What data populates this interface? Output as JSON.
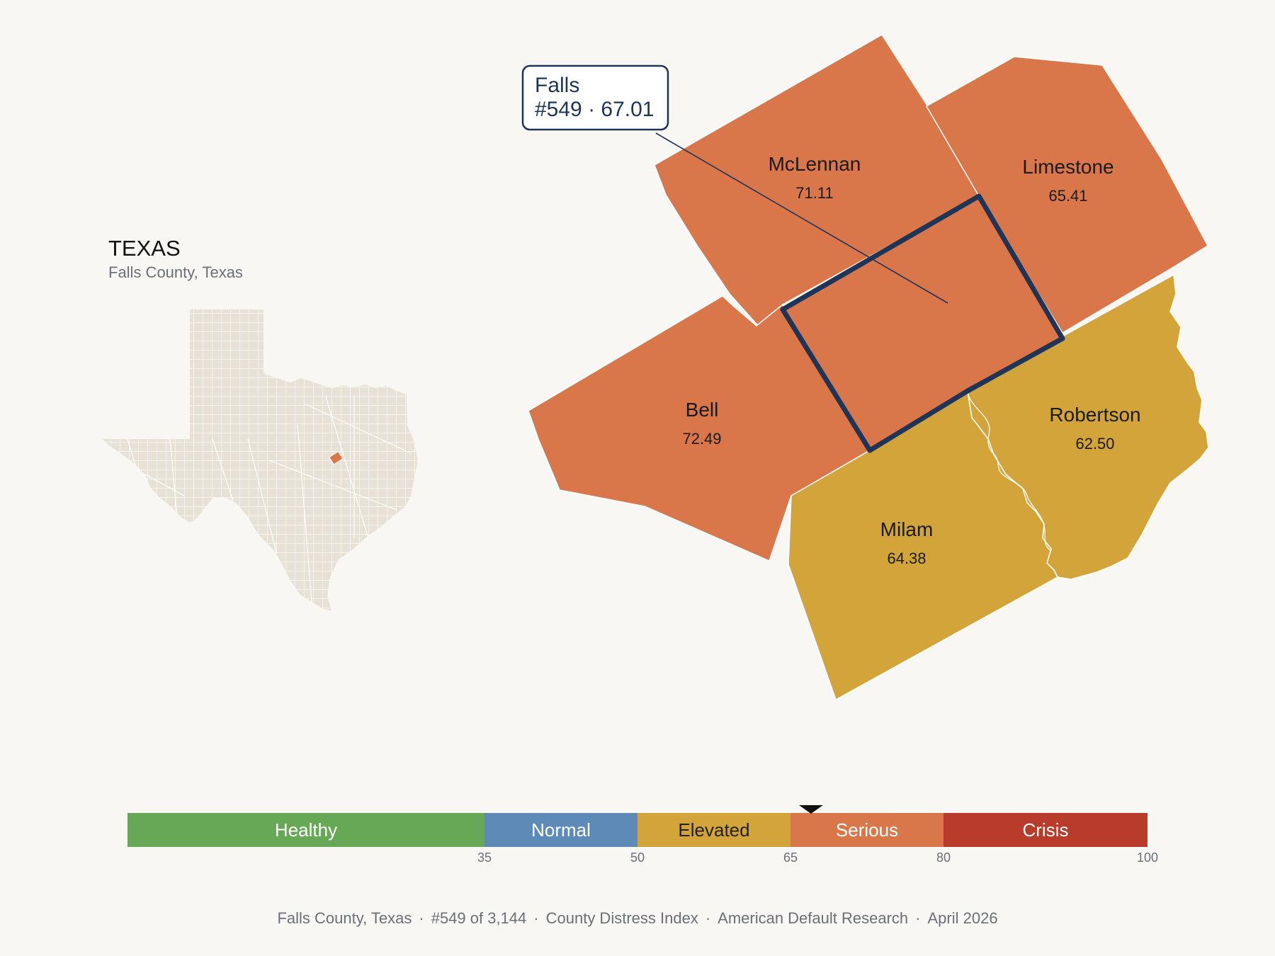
{
  "inset": {
    "title": "TEXAS",
    "subtitle": "Falls County, Texas"
  },
  "callout": {
    "name": "Falls",
    "detail": "#549 · 67.01"
  },
  "counties": [
    {
      "id": "mclennan",
      "name": "McLennan",
      "value": "71.11",
      "category": "Serious"
    },
    {
      "id": "limestone",
      "name": "Limestone",
      "value": "65.41",
      "category": "Serious"
    },
    {
      "id": "bell",
      "name": "Bell",
      "value": "72.49",
      "category": "Serious"
    },
    {
      "id": "robertson",
      "name": "Robertson",
      "value": "62.50",
      "category": "Elevated"
    },
    {
      "id": "milam",
      "name": "Milam",
      "value": "64.38",
      "category": "Elevated"
    },
    {
      "id": "falls",
      "name": "Falls",
      "value": "67.01",
      "category": "Serious",
      "highlighted": true
    }
  ],
  "legend": {
    "domain": [
      0,
      100
    ],
    "marker_value": 67.01,
    "bands": [
      {
        "label": "Healthy",
        "from": 0,
        "to": 35,
        "color": "#67a857",
        "text_color": "#ffffff"
      },
      {
        "label": "Normal",
        "from": 35,
        "to": 50,
        "color": "#5e8ab8",
        "text_color": "#ffffff"
      },
      {
        "label": "Elevated",
        "from": 50,
        "to": 65,
        "color": "#d3a43a",
        "text_color": "#222222"
      },
      {
        "label": "Serious",
        "from": 65,
        "to": 80,
        "color": "#d9764a",
        "text_color": "#ffffff"
      },
      {
        "label": "Crisis",
        "from": 80,
        "to": 100,
        "color": "#b93b2c",
        "text_color": "#ffffff"
      }
    ],
    "ticks": [
      "35",
      "50",
      "65",
      "80",
      "100"
    ]
  },
  "colors": {
    "serious": "#d9764a",
    "elevated": "#d3a43a",
    "highlight_outline": "#1f3558",
    "inset_fill": "#e8e2d6",
    "background": "#f9f7f3"
  },
  "footer": {
    "county": "Falls County, Texas",
    "rank": "#549 of 3,144",
    "index": "County Distress Index",
    "source": "American Default Research",
    "date": "April 2026"
  }
}
